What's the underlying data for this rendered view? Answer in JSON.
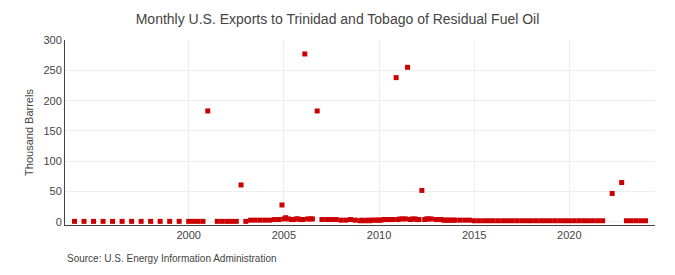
{
  "chart_data": {
    "type": "scatter",
    "title": "Monthly U.S. Exports to Trinidad and Tobago of Residual Fuel Oil",
    "ylabel": "Thousand Barrels",
    "annotations": [
      "Source: U.S. Energy Information Administration"
    ],
    "color": "#cc0000",
    "marker": "square",
    "grid": true,
    "xlim": [
      1993.5,
      2024.5
    ],
    "ylim": [
      -5,
      300
    ],
    "xticks": [
      2000,
      2005,
      2010,
      2015,
      2020
    ],
    "yticks": [
      0,
      50,
      100,
      150,
      200,
      250,
      300
    ],
    "x": [
      1994.0,
      1994.5,
      1995.0,
      1995.5,
      1996.0,
      1996.5,
      1997.0,
      1997.5,
      1998.0,
      1998.5,
      1999.0,
      1999.5,
      2000.0,
      2000.25,
      2000.5,
      2000.75,
      2001.0,
      2001.5,
      2001.75,
      2002.0,
      2002.25,
      2002.5,
      2002.75,
      2003.0,
      2003.25,
      2003.5,
      2003.75,
      2004.0,
      2004.25,
      2004.5,
      2004.75,
      2004.9,
      2005.0,
      2005.1,
      2005.25,
      2005.4,
      2005.5,
      2005.65,
      2005.75,
      2005.9,
      2006.0,
      2006.1,
      2006.25,
      2006.4,
      2006.5,
      2006.75,
      2007.0,
      2007.25,
      2007.5,
      2007.75,
      2008.0,
      2008.25,
      2008.5,
      2008.75,
      2009.0,
      2009.1,
      2009.25,
      2009.4,
      2009.5,
      2009.6,
      2009.75,
      2009.9,
      2010.0,
      2010.1,
      2010.25,
      2010.4,
      2010.5,
      2010.6,
      2010.75,
      2010.9,
      2011.0,
      2011.1,
      2011.25,
      2011.4,
      2011.5,
      2011.65,
      2011.75,
      2011.9,
      2012.0,
      2012.1,
      2012.25,
      2012.4,
      2012.5,
      2012.6,
      2012.75,
      2013.0,
      2013.1,
      2013.25,
      2013.4,
      2013.5,
      2013.65,
      2013.75,
      2013.9,
      2014.0,
      2014.25,
      2014.5,
      2014.75,
      2015.0,
      2015.25,
      2015.5,
      2015.75,
      2016.0,
      2016.25,
      2016.5,
      2016.75,
      2017.0,
      2017.25,
      2017.5,
      2017.75,
      2018.0,
      2018.25,
      2018.5,
      2018.75,
      2019.0,
      2019.25,
      2019.5,
      2019.75,
      2020.0,
      2020.25,
      2020.5,
      2020.75,
      2021.0,
      2021.25,
      2021.5,
      2021.75,
      2022.25,
      2022.75,
      2023.0,
      2023.25,
      2023.5,
      2023.75,
      2024.0
    ],
    "values": [
      1,
      1,
      1,
      1,
      1,
      1,
      1,
      1,
      1,
      1,
      1,
      1,
      1,
      1,
      1,
      1,
      183,
      1,
      1,
      1,
      1,
      1,
      61,
      1,
      3,
      3,
      3,
      3,
      3,
      4,
      4,
      28,
      5,
      7,
      5,
      4,
      4,
      5,
      5,
      4,
      4,
      277,
      5,
      5,
      5,
      183,
      4,
      4,
      4,
      4,
      3,
      3,
      4,
      3,
      2,
      3,
      2,
      3,
      2,
      3,
      3,
      3,
      3,
      3,
      4,
      4,
      4,
      4,
      4,
      238,
      4,
      5,
      5,
      5,
      255,
      4,
      5,
      5,
      4,
      4,
      52,
      4,
      5,
      5,
      5,
      4,
      4,
      4,
      3,
      3,
      3,
      3,
      3,
      3,
      3,
      3,
      3,
      2,
      2,
      2,
      2,
      2,
      2,
      2,
      2,
      2,
      2,
      2,
      2,
      2,
      2,
      2,
      2,
      2,
      2,
      2,
      2,
      2,
      2,
      2,
      2,
      2,
      2,
      2,
      2,
      47,
      65,
      2,
      2,
      2,
      2,
      2
    ]
  }
}
